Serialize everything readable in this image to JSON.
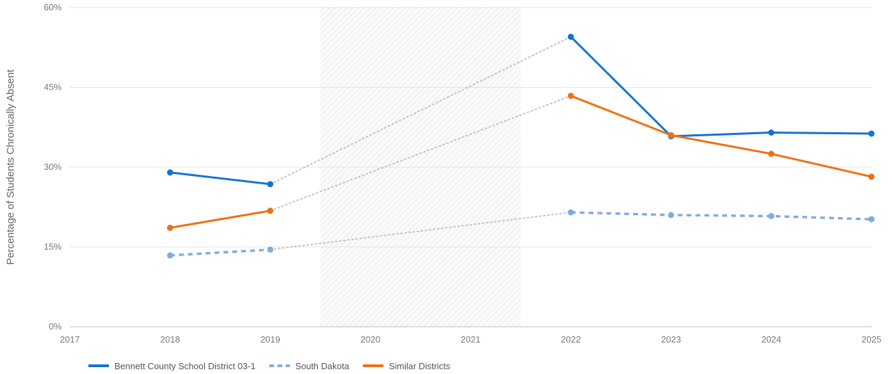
{
  "chart_data": {
    "type": "line",
    "title": "",
    "xlabel": "",
    "ylabel": "Percentage of Students Chronically Absent",
    "x": [
      2017,
      2018,
      2019,
      2020,
      2021,
      2022,
      2023,
      2024,
      2025
    ],
    "x_tick_labels": [
      "2017",
      "2018",
      "2019",
      "2020",
      "2021",
      "2022",
      "2023",
      "2024",
      "2025"
    ],
    "xlim": [
      2017,
      2025
    ],
    "ylim": [
      0,
      60
    ],
    "y_ticks": [
      0,
      15,
      30,
      45,
      60
    ],
    "y_tick_labels": [
      "0%",
      "15%",
      "30%",
      "45%",
      "60%"
    ],
    "grid": true,
    "legend_position": "bottom-left",
    "shaded_region": {
      "x_start": 2019.5,
      "x_end": 2021.5,
      "pattern": "diagonal-hatch"
    },
    "gap_connector_style": "dotted-gray",
    "series": [
      {
        "name": "Bennett County School District 03-1",
        "color": "#1473d4",
        "style": "solid",
        "points": [
          {
            "x": 2018,
            "y": 29.0
          },
          {
            "x": 2019,
            "y": 26.8
          },
          {
            "x": 2022,
            "y": 54.5
          },
          {
            "x": 2023,
            "y": 35.8
          },
          {
            "x": 2024,
            "y": 36.5
          },
          {
            "x": 2025,
            "y": 36.3
          }
        ]
      },
      {
        "name": "South Dakota",
        "color": "#80acdc",
        "style": "dashed",
        "points": [
          {
            "x": 2018,
            "y": 13.4
          },
          {
            "x": 2019,
            "y": 14.5
          },
          {
            "x": 2022,
            "y": 21.5
          },
          {
            "x": 2023,
            "y": 21.0
          },
          {
            "x": 2024,
            "y": 20.8
          },
          {
            "x": 2025,
            "y": 20.2
          }
        ]
      },
      {
        "name": "Similar Districts",
        "color": "#ee7112",
        "style": "solid",
        "points": [
          {
            "x": 2018,
            "y": 18.6
          },
          {
            "x": 2019,
            "y": 21.8
          },
          {
            "x": 2022,
            "y": 43.4
          },
          {
            "x": 2023,
            "y": 36.0
          },
          {
            "x": 2024,
            "y": 32.5
          },
          {
            "x": 2025,
            "y": 28.2
          }
        ]
      }
    ]
  }
}
